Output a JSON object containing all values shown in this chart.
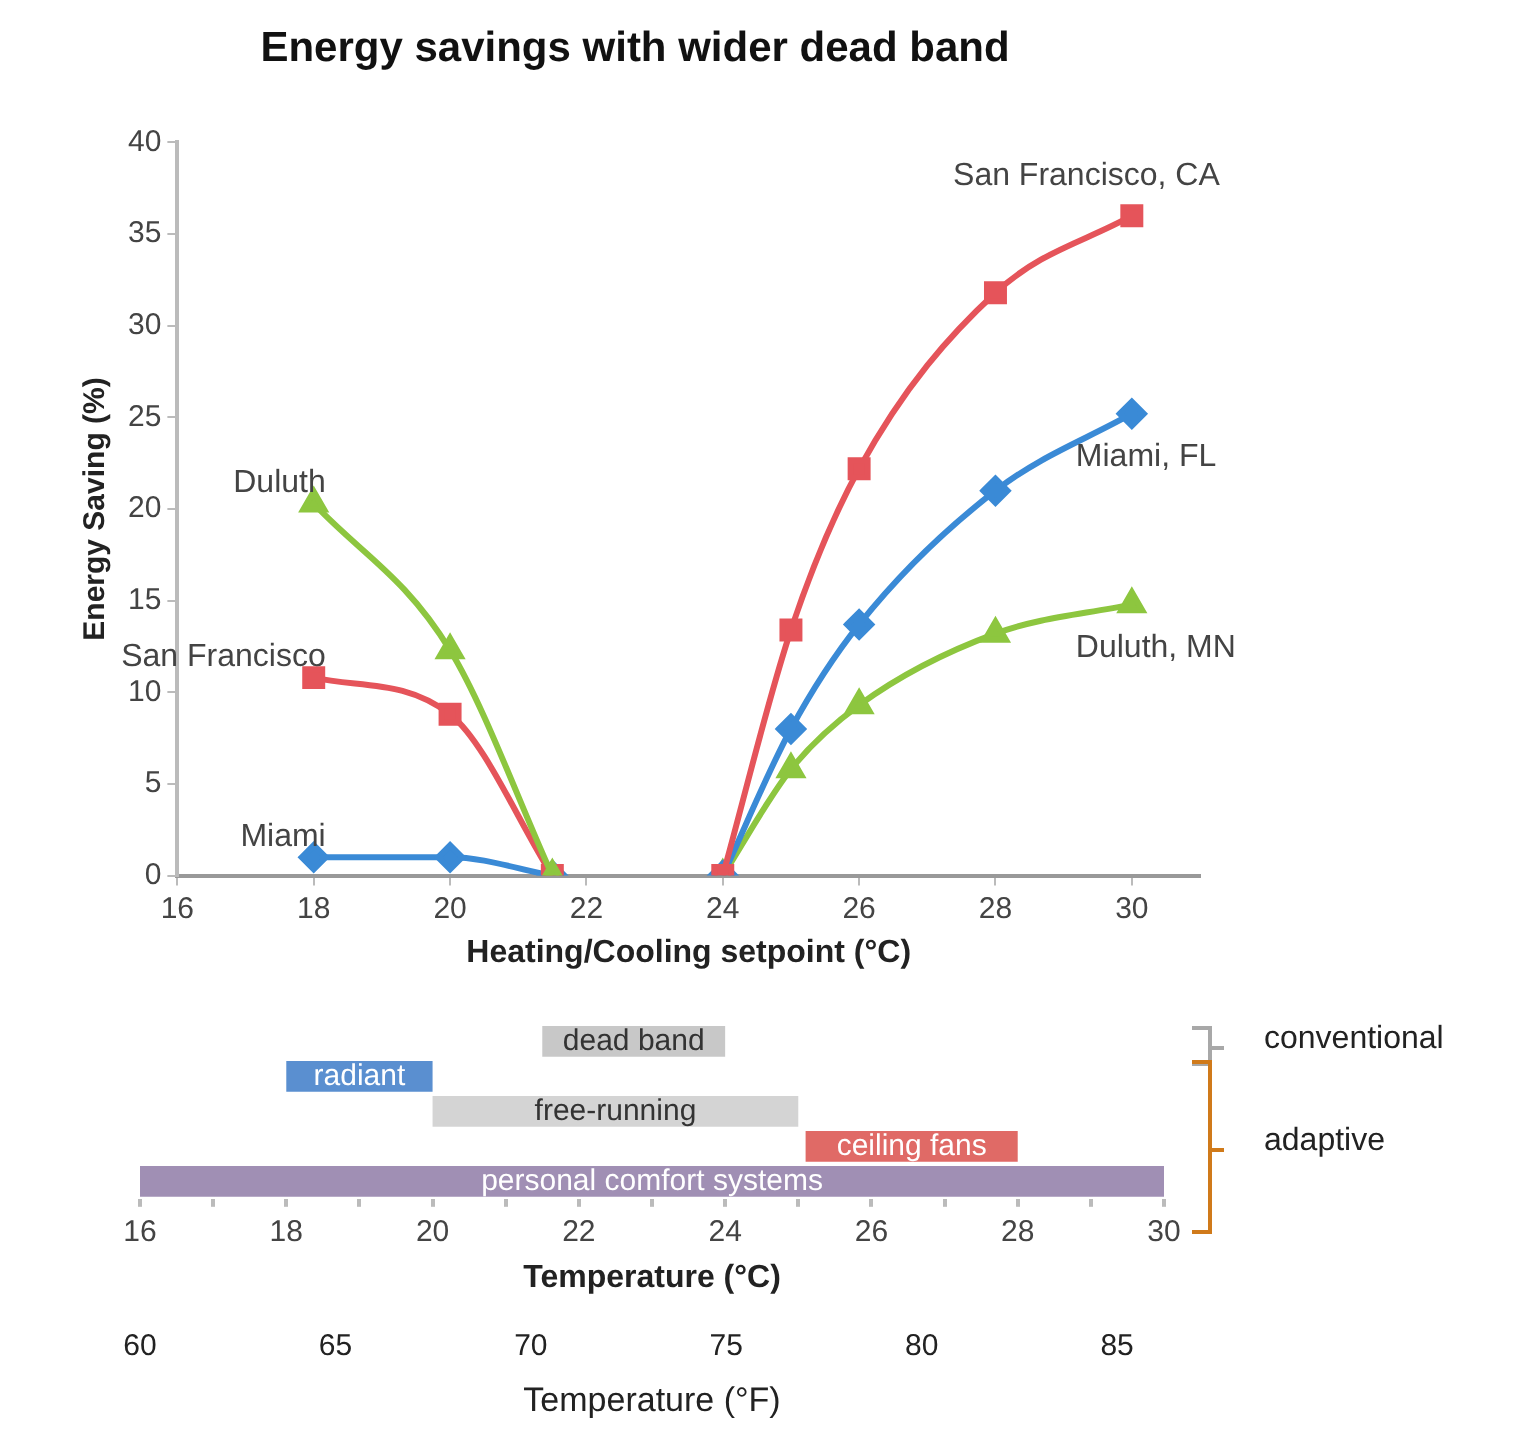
{
  "chart_data": [
    {
      "type": "line",
      "title": "Energy savings with wider dead band",
      "xlabel": "Heating/Cooling setpoint (°C)",
      "ylabel": "Energy Saving (%)",
      "xlim": [
        16,
        31
      ],
      "xticks": [
        16,
        18,
        20,
        22,
        24,
        26,
        28,
        30
      ],
      "ylim": [
        0,
        40
      ],
      "yticks": [
        0,
        5,
        10,
        15,
        20,
        25,
        30,
        35,
        40
      ],
      "grid": false,
      "legend": false,
      "series": [
        {
          "name": "Duluth",
          "color": "#8dc63f",
          "marker": "triangle",
          "x": [
            18,
            20,
            21.5
          ],
          "values": [
            20.3,
            12.3,
            0
          ]
        },
        {
          "name": "San Francisco",
          "color": "#e5545a",
          "marker": "square",
          "x": [
            18,
            20,
            21.5
          ],
          "values": [
            10.8,
            8.8,
            0
          ]
        },
        {
          "name": "Miami",
          "color": "#3a8ad6",
          "marker": "diamond",
          "x": [
            18,
            20,
            21.5
          ],
          "values": [
            1,
            1,
            0
          ]
        },
        {
          "name": "San Francisco, CA",
          "color": "#e5545a",
          "marker": "square",
          "x": [
            24,
            25,
            26,
            28,
            30
          ],
          "values": [
            0,
            13.4,
            22.2,
            31.8,
            36
          ]
        },
        {
          "name": "Miami, FL",
          "color": "#3a8ad6",
          "marker": "diamond",
          "x": [
            24,
            25,
            26,
            28,
            30
          ],
          "values": [
            0,
            8,
            13.7,
            21,
            25.2
          ]
        },
        {
          "name": "Duluth, MN",
          "color": "#8dc63f",
          "marker": "triangle",
          "x": [
            24,
            25,
            26,
            28,
            30
          ],
          "values": [
            0,
            5.8,
            9.3,
            13.2,
            14.8
          ]
        }
      ]
    },
    {
      "type": "bar",
      "orientation": "horizontal",
      "categories": [
        null,
        null,
        null,
        null,
        null
      ],
      "xlabel": "Temperature (°C)",
      "x2label": "Temperature (°F)",
      "xlim": [
        16,
        30
      ],
      "xticks": [
        16,
        {
          "value": 17,
          "label": null
        },
        18,
        {
          "value": 19,
          "label": null
        },
        20,
        {
          "value": 21,
          "label": null
        },
        22,
        {
          "value": 23,
          "label": null
        },
        24,
        {
          "value": 25,
          "label": null
        },
        26,
        {
          "value": 27,
          "label": null
        },
        28,
        {
          "value": 29,
          "label": null
        },
        30
      ],
      "x2lim": [
        60,
        86.2
      ],
      "x2ticks": [
        60,
        65,
        70,
        75,
        80,
        85
      ],
      "grid": false,
      "legend": false,
      "annotations": [
        "conventional",
        "adaptive"
      ],
      "values": [
        2.5,
        2,
        5,
        2.9,
        14
      ],
      "base": [
        21.5,
        18,
        20,
        25.1,
        16
      ],
      "colors": [
        "#c8c8c8",
        "#5a8fd0",
        "#d4d4d4",
        "#e06a66",
        "#a08fb4"
      ],
      "value_labels": [
        "dead band",
        "radiant",
        "free-running",
        "ceiling fans",
        "personal comfort systems"
      ]
    }
  ]
}
